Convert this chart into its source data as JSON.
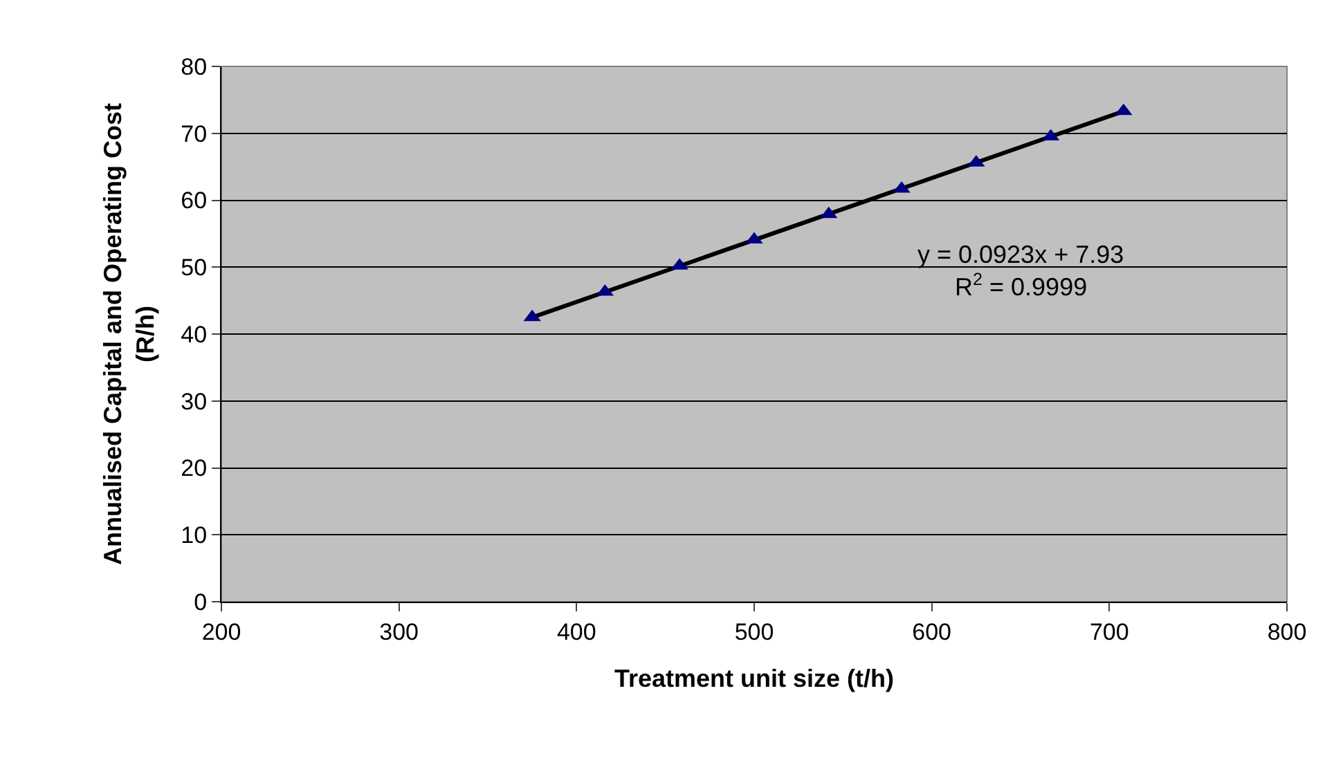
{
  "chart_data": {
    "type": "scatter",
    "xlabel": "Treatment unit size (t/h)",
    "ylabel": "Annualised Capital and Operating Cost (R/h)",
    "x": [
      375,
      416,
      458,
      500,
      542,
      583,
      625,
      667,
      708
    ],
    "series": [
      {
        "type": "line",
        "color": "#000000",
        "marker": "none",
        "line_style": "solid",
        "x": [
          375,
          708
        ],
        "values": [
          42.5,
          73.3
        ]
      },
      {
        "color": "#000080",
        "marker": "triangle",
        "values": [
          42.5,
          46.3,
          50.2,
          54.1,
          57.9,
          61.7,
          65.6,
          69.5,
          73.3
        ]
      }
    ],
    "xlim": [
      200,
      800
    ],
    "xticks": [
      200,
      300,
      400,
      500,
      600,
      700,
      800
    ],
    "ylim": [
      0,
      80
    ],
    "yticks": [
      0,
      10,
      20,
      30,
      40,
      50,
      60,
      70,
      80
    ],
    "grid": "y",
    "annotations": [
      "y = 0.0923x + 7.93",
      "R$^{2}$ = 0.9999"
    ]
  }
}
